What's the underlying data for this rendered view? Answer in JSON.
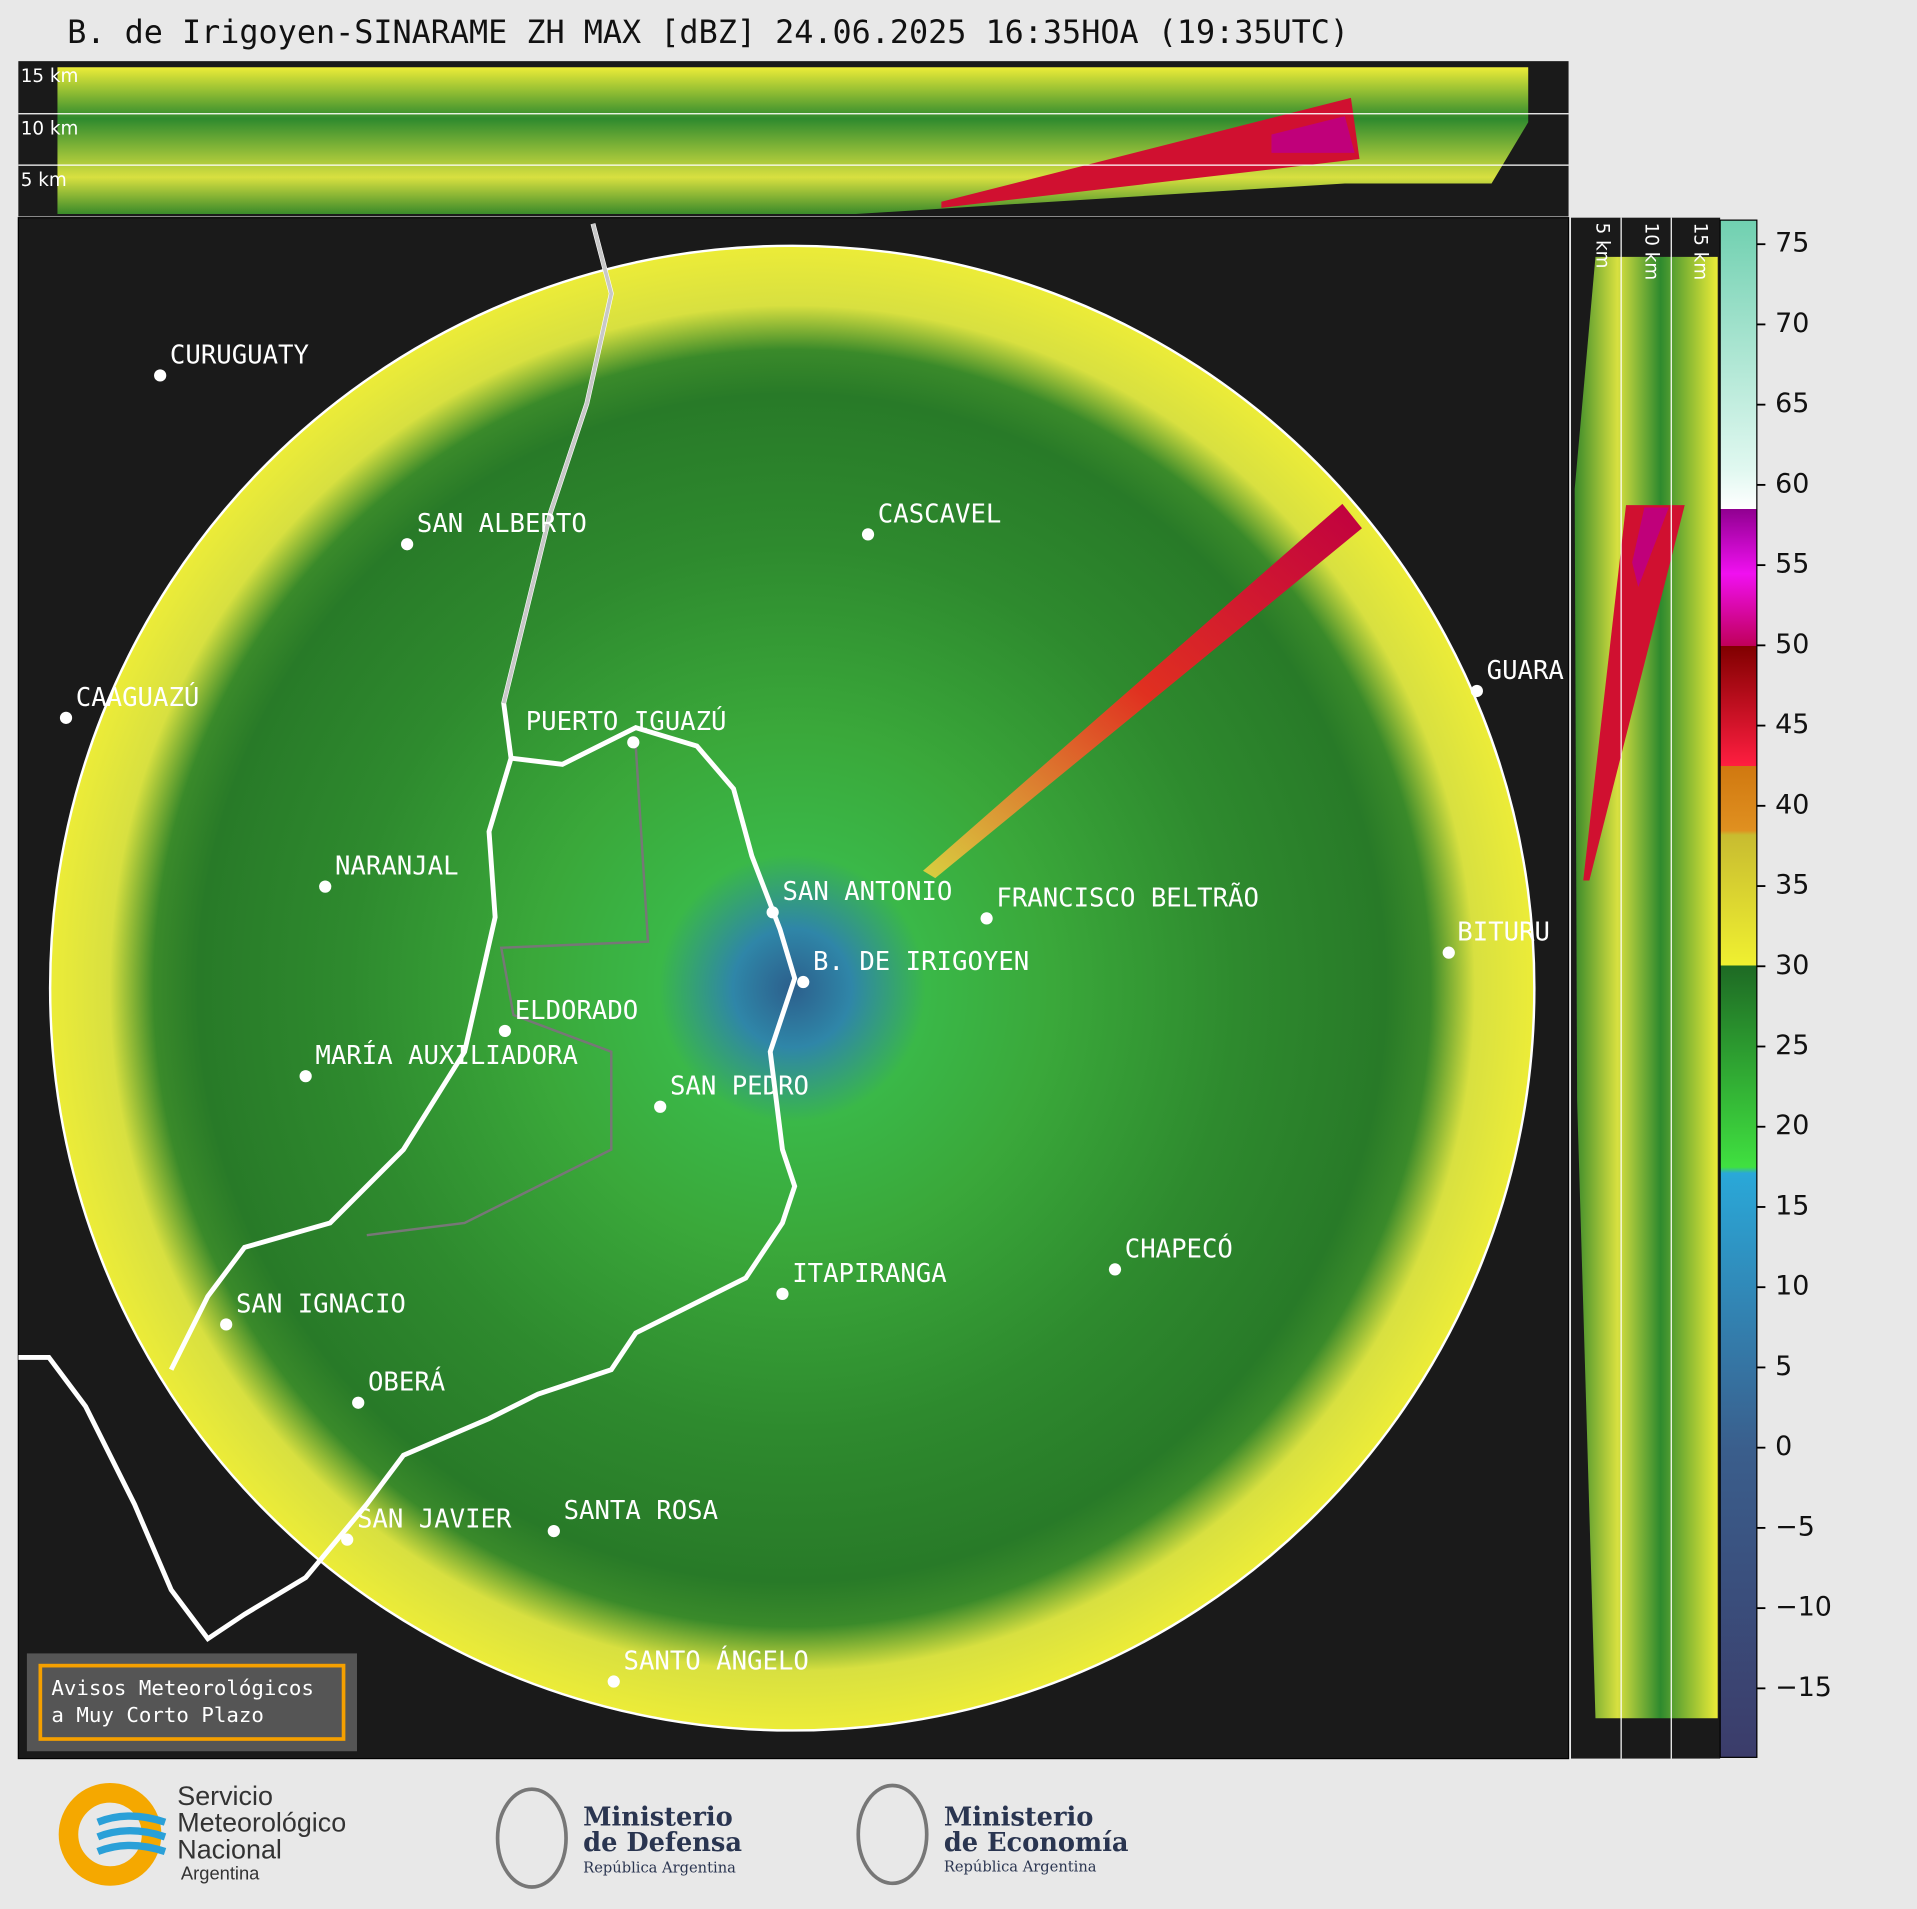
{
  "header": {
    "title": "B. de Irigoyen-SINARAME ZH MAX [dBZ] 24.06.2025 16:35HOA (19:35UTC)"
  },
  "top_panel": {
    "height_labels": [
      "15 km",
      "10 km",
      "5 km"
    ]
  },
  "side_panel": {
    "height_labels": [
      "5 km",
      "10 km",
      "15 km"
    ]
  },
  "map": {
    "cities": [
      "CURUGUATY",
      "SAN ALBERTO",
      "CASCAVEL",
      "CAAGUAZÚ",
      "GUARA",
      "PUERTO IGUAZÚ",
      "NARANJAL",
      "SAN ANTONIO",
      "FRANCISCO BELTRÃO",
      "BITURU",
      "B. DE IRIGOYEN",
      "ELDORADO",
      "MARÍA AUXILIADORA",
      "SAN PEDRO",
      "ITAPIRANGA",
      "CHAPECÓ",
      "SAN IGNACIO",
      "OBERÁ",
      "SAN JAVIER",
      "SANTA ROSA",
      "SANTO ÁNGELO"
    ]
  },
  "colorbar": {
    "range": [
      -19.3,
      76.5
    ],
    "ticks": [
      75,
      70,
      65,
      60,
      55,
      50,
      45,
      40,
      35,
      30,
      25,
      20,
      15,
      10,
      5,
      0,
      {
        "value": -5,
        "label": "−5"
      },
      {
        "value": -10,
        "label": "−10"
      },
      {
        "value": -15,
        "label": "−15"
      }
    ]
  },
  "notice": {
    "lines": [
      "Avisos Meteorológicos",
      "a Muy Corto Plazo"
    ]
  },
  "footer": {
    "smn": {
      "lines": [
        "Servicio",
        "Meteorológico",
        "Nacional"
      ],
      "country": "Argentina"
    },
    "defensa": {
      "lines": [
        "Ministerio",
        "de Defensa"
      ],
      "subtitle": "República Argentina"
    },
    "economia": {
      "lines": [
        "Ministerio",
        "de Economía"
      ],
      "subtitle": "República Argentina"
    }
  }
}
